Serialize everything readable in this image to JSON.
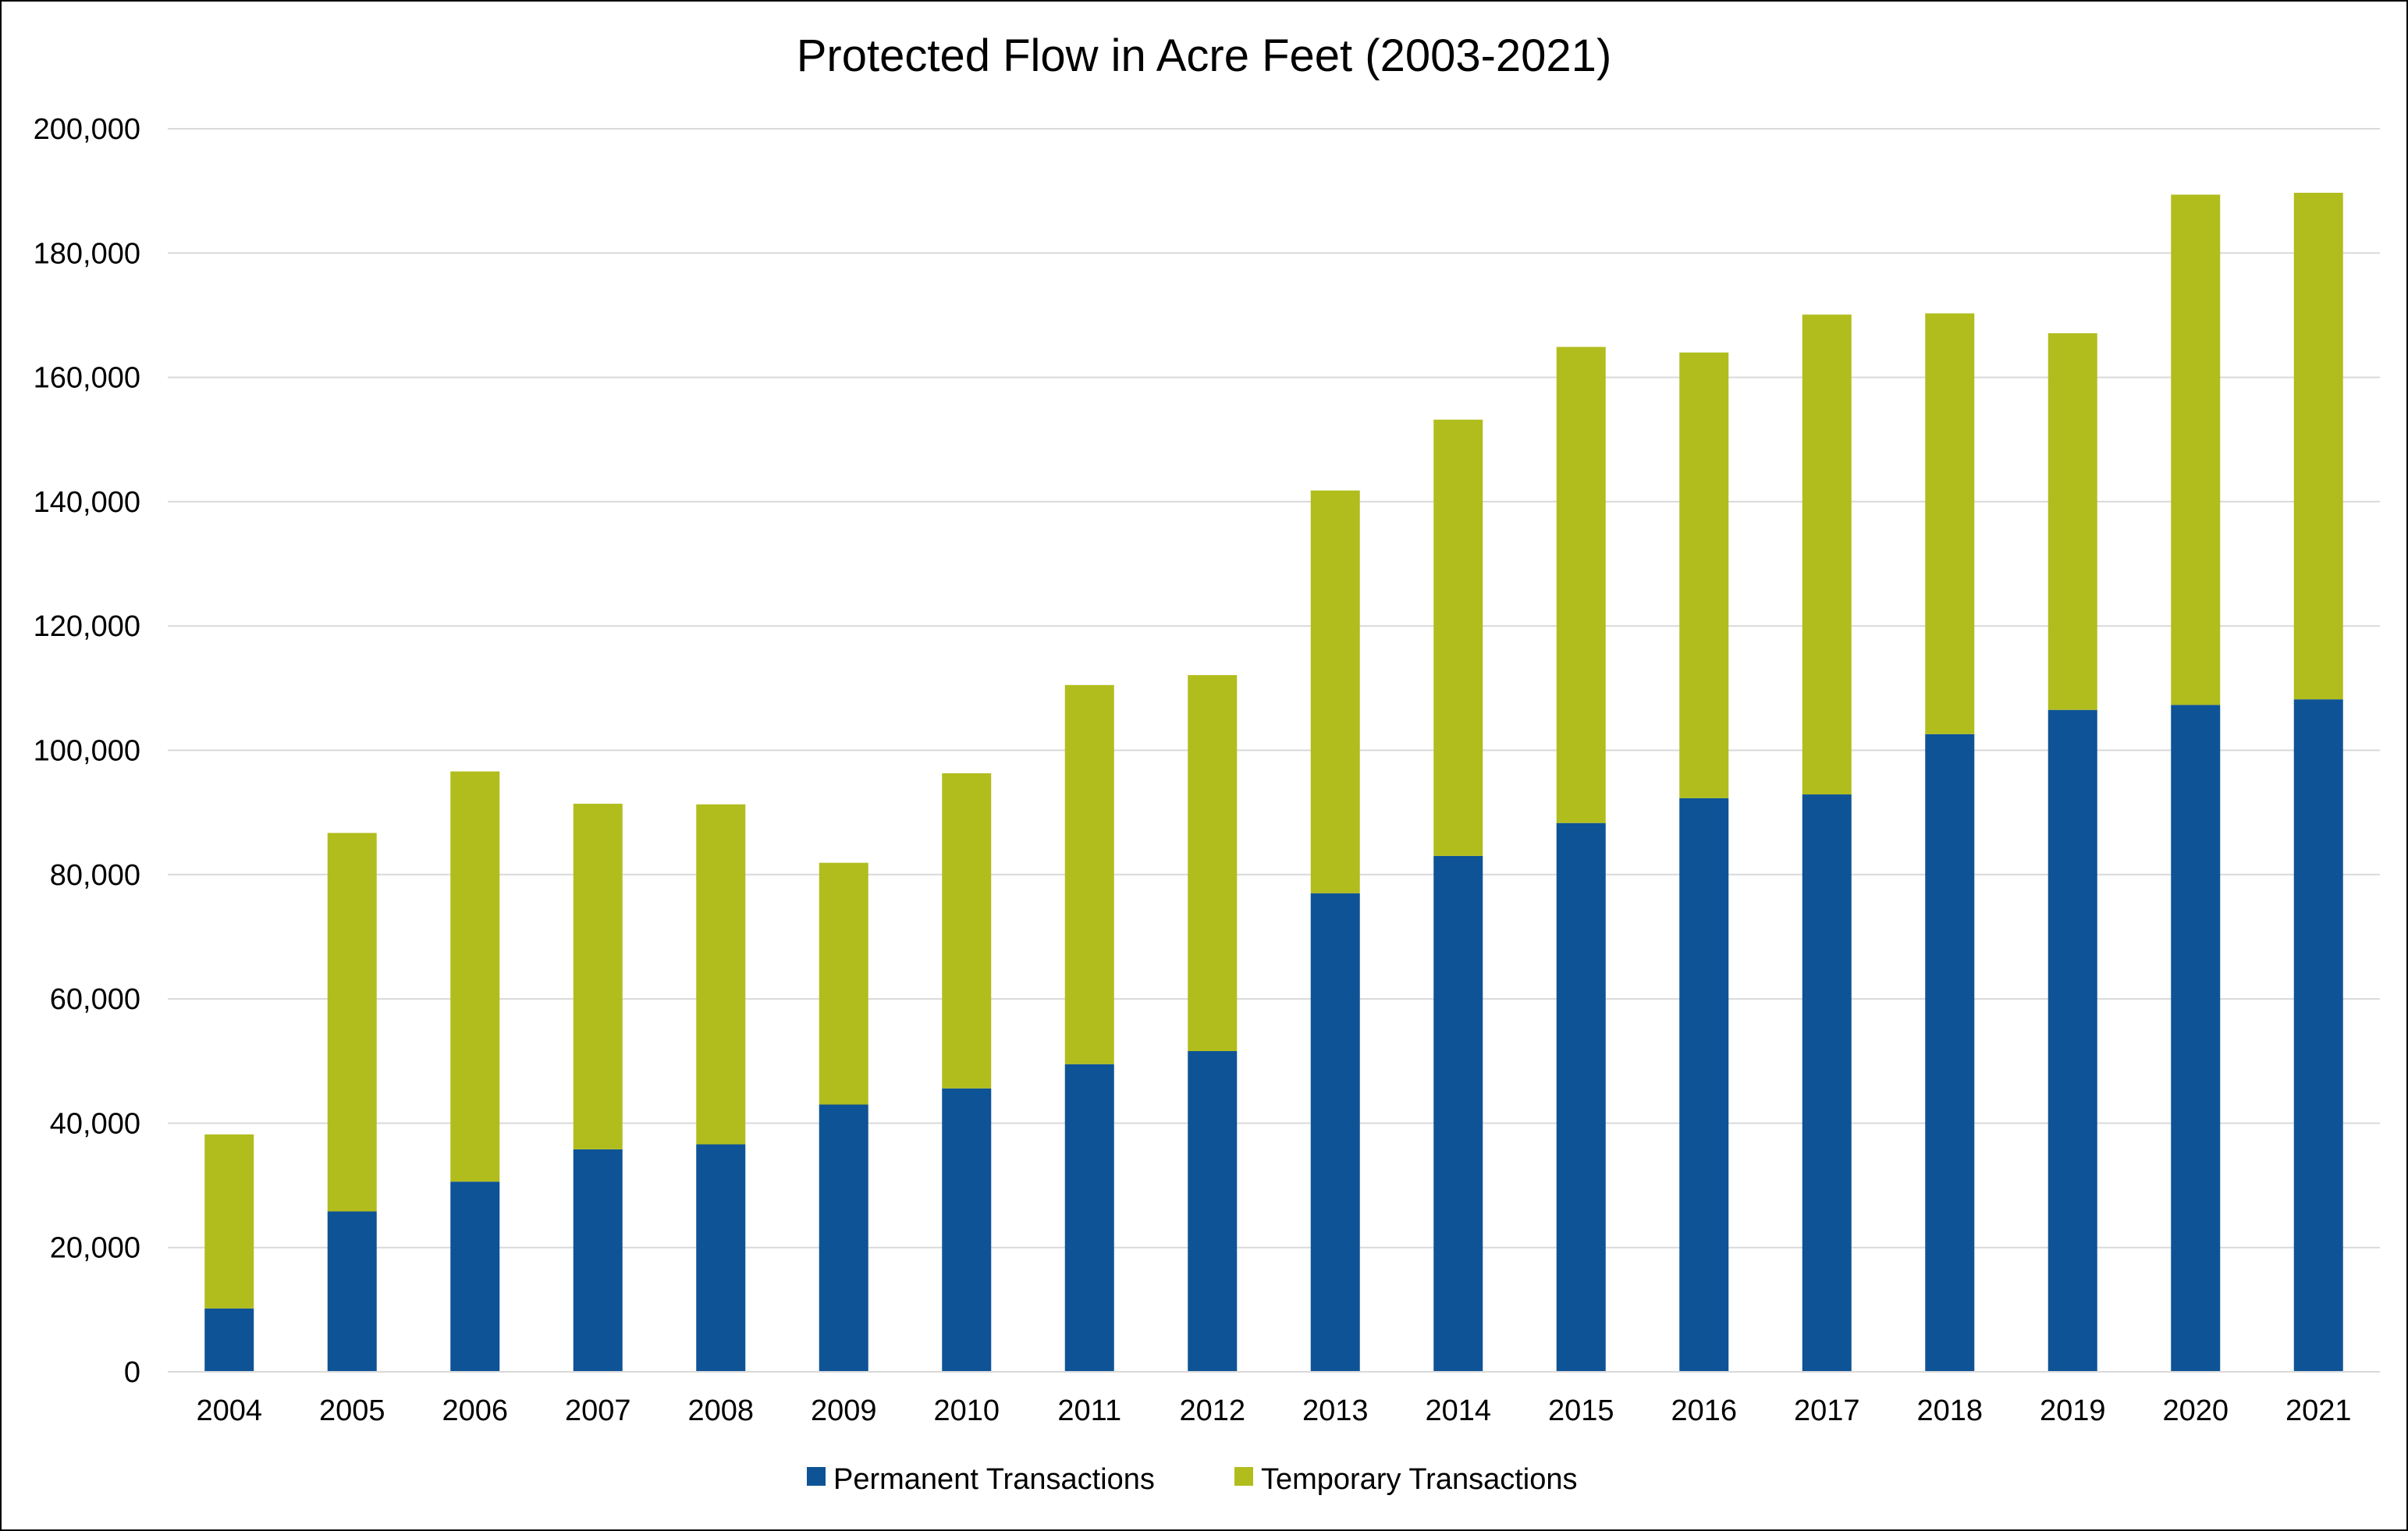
{
  "chart_data": {
    "type": "bar",
    "stacked": true,
    "title": "Protected Flow in Acre Feet (2003-2021)",
    "xlabel": "",
    "ylabel": "",
    "ylim": [
      0,
      200000
    ],
    "y_ticks": [
      0,
      20000,
      40000,
      60000,
      80000,
      100000,
      120000,
      140000,
      160000,
      180000,
      200000
    ],
    "y_tick_labels": [
      "0",
      "20,000",
      "40,000",
      "60,000",
      "80,000",
      "100,000",
      "120,000",
      "140,000",
      "160,000",
      "180,000",
      "200,000"
    ],
    "grid": true,
    "legend_position": "bottom",
    "categories": [
      "2004",
      "2005",
      "2006",
      "2007",
      "2008",
      "2009",
      "2010",
      "2011",
      "2012",
      "2013",
      "2014",
      "2015",
      "2016",
      "2017",
      "2018",
      "2019",
      "2020",
      "2021"
    ],
    "series": [
      {
        "name": "Permanent Transactions",
        "color": "#0E5396",
        "values": [
          10200,
          25800,
          30600,
          35800,
          36600,
          43000,
          45600,
          49500,
          51600,
          77000,
          83000,
          88300,
          92300,
          92900,
          102600,
          106500,
          107300,
          108200
        ]
      },
      {
        "name": "Temporary Transactions",
        "color": "#B1BD1D",
        "values": [
          28000,
          60900,
          66000,
          55600,
          54700,
          38900,
          50700,
          61000,
          60500,
          64800,
          70200,
          76600,
          71700,
          77200,
          67700,
          60600,
          82100,
          81500
        ]
      }
    ]
  }
}
